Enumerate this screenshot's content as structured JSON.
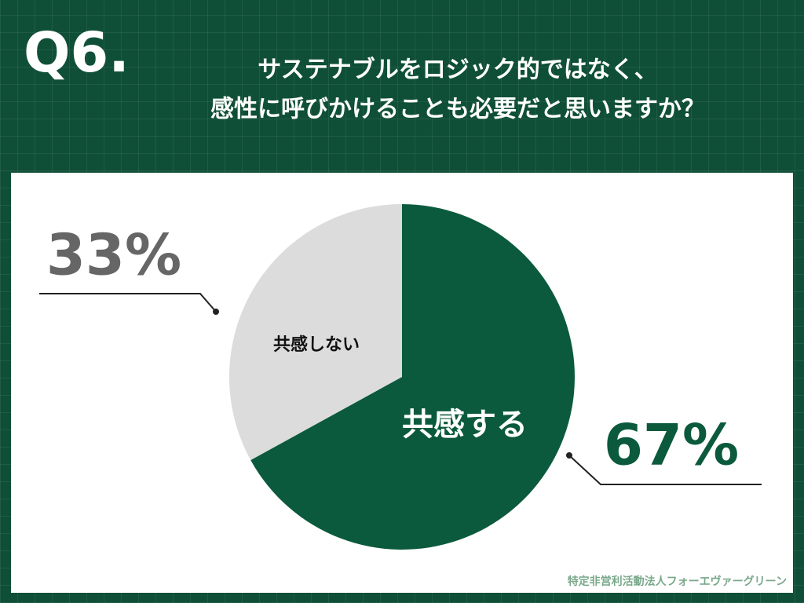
{
  "chart_data": {
    "type": "pie",
    "question_number": "Q6.",
    "title": [
      "サステナブルをロジック的ではなく、",
      "感性に呼びかけることも必要だと思いますか？"
    ],
    "categories": [
      "共感する",
      "共感しない"
    ],
    "values": [
      67,
      33
    ],
    "value_labels": [
      "67%",
      "33%"
    ],
    "colors": [
      "#0b5a3d",
      "#dcdcdc"
    ],
    "source": "特定非営利活動法人フォーエヴァーグリーン"
  }
}
